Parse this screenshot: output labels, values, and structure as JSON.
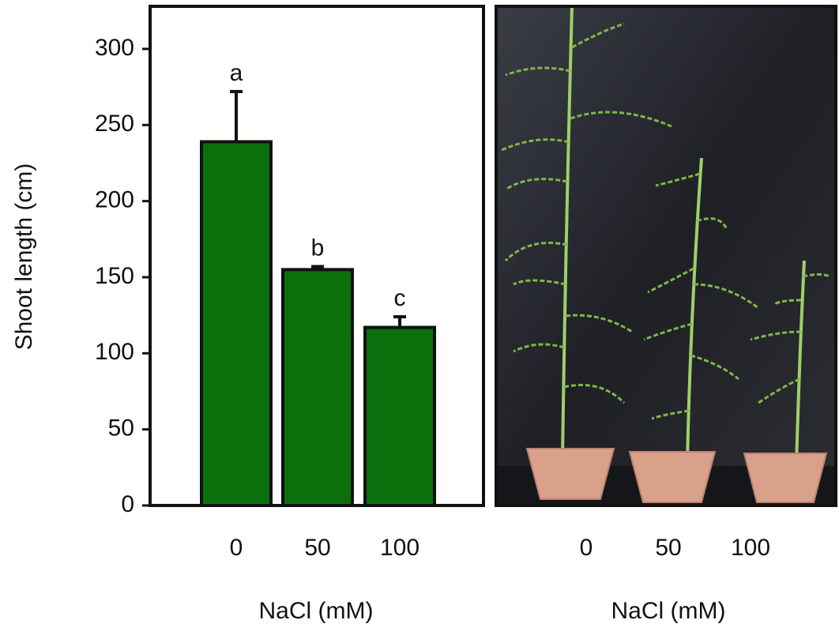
{
  "chart_data": {
    "type": "bar",
    "ylabel": "Shoot length (cm)",
    "xlabel": "NaCl (mM)",
    "categories": [
      "0",
      "50",
      "100"
    ],
    "values": [
      239,
      155,
      117
    ],
    "errors": [
      33,
      2,
      7
    ],
    "annotations": [
      "a",
      "b",
      "c"
    ],
    "color": "#0b700b",
    "ylim": [
      0,
      328
    ],
    "yticks": [
      0,
      50,
      100,
      150,
      200,
      250,
      300
    ],
    "grid": false
  },
  "photo": {
    "categories": [
      "0",
      "50",
      "100"
    ],
    "xlabel": "NaCl (mM)"
  }
}
